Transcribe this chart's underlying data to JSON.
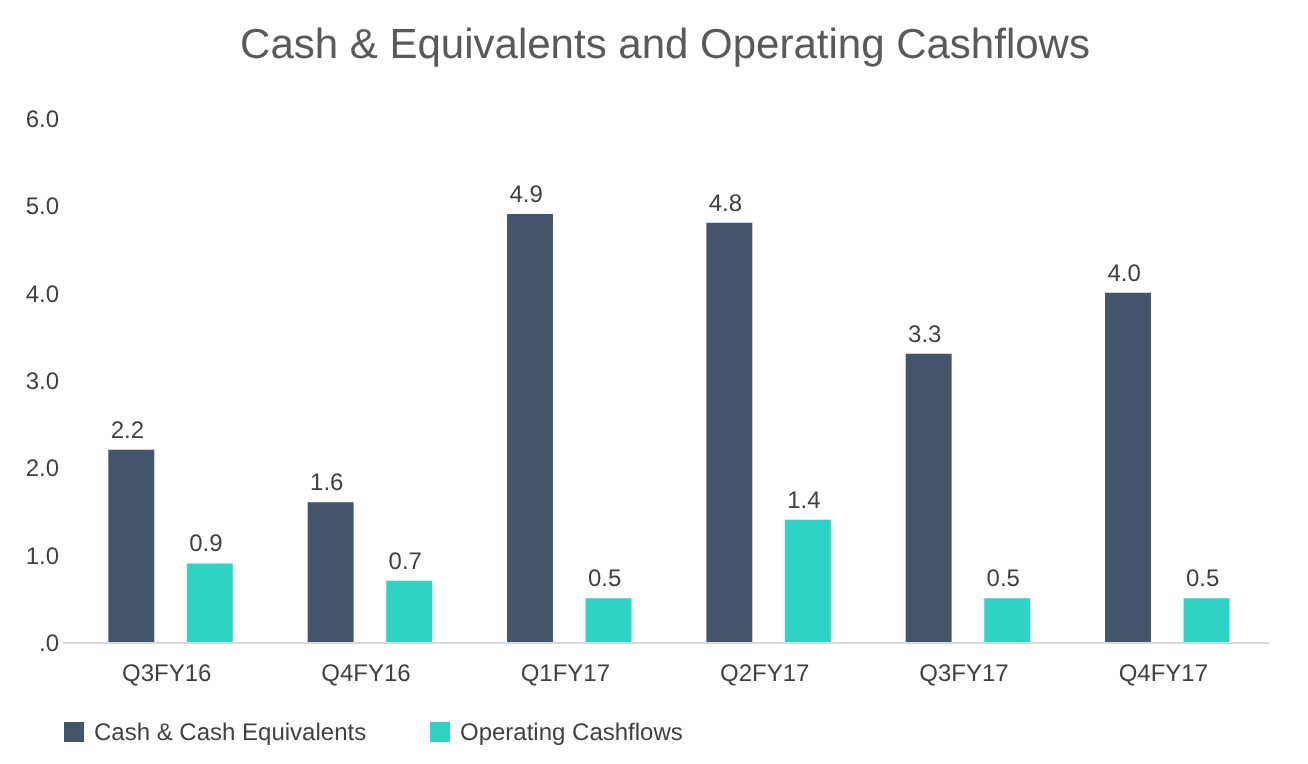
{
  "chart_data": {
    "type": "bar",
    "title": "Cash & Equivalents and Operating Cashflows",
    "categories": [
      "Q3FY16",
      "Q4FY16",
      "Q1FY17",
      "Q2FY17",
      "Q3FY17",
      "Q4FY17"
    ],
    "series": [
      {
        "name": "Cash & Cash Equivalents",
        "color": "#44546a",
        "values": [
          2.2,
          1.6,
          4.9,
          4.8,
          3.3,
          4.0
        ],
        "value_labels": [
          "2.2",
          "1.6",
          "4.9",
          "4.8",
          "3.3",
          "4.0"
        ]
      },
      {
        "name": "Operating Cashflows",
        "color": "#2ed3c6",
        "values": [
          0.9,
          0.7,
          0.5,
          1.4,
          0.5,
          0.5
        ],
        "value_labels": [
          "0.9",
          "0.7",
          "0.5",
          "1.4",
          "0.5",
          "0.5"
        ]
      }
    ],
    "ylim": [
      0,
      6
    ],
    "yticks": [
      {
        "value": 0,
        "label": ".0"
      },
      {
        "value": 1,
        "label": "1.0"
      },
      {
        "value": 2,
        "label": "2.0"
      },
      {
        "value": 3,
        "label": "3.0"
      },
      {
        "value": 4,
        "label": "4.0"
      },
      {
        "value": 5,
        "label": "5.0"
      },
      {
        "value": 6,
        "label": "6.0"
      }
    ],
    "grid": false,
    "legend": "bottom"
  }
}
